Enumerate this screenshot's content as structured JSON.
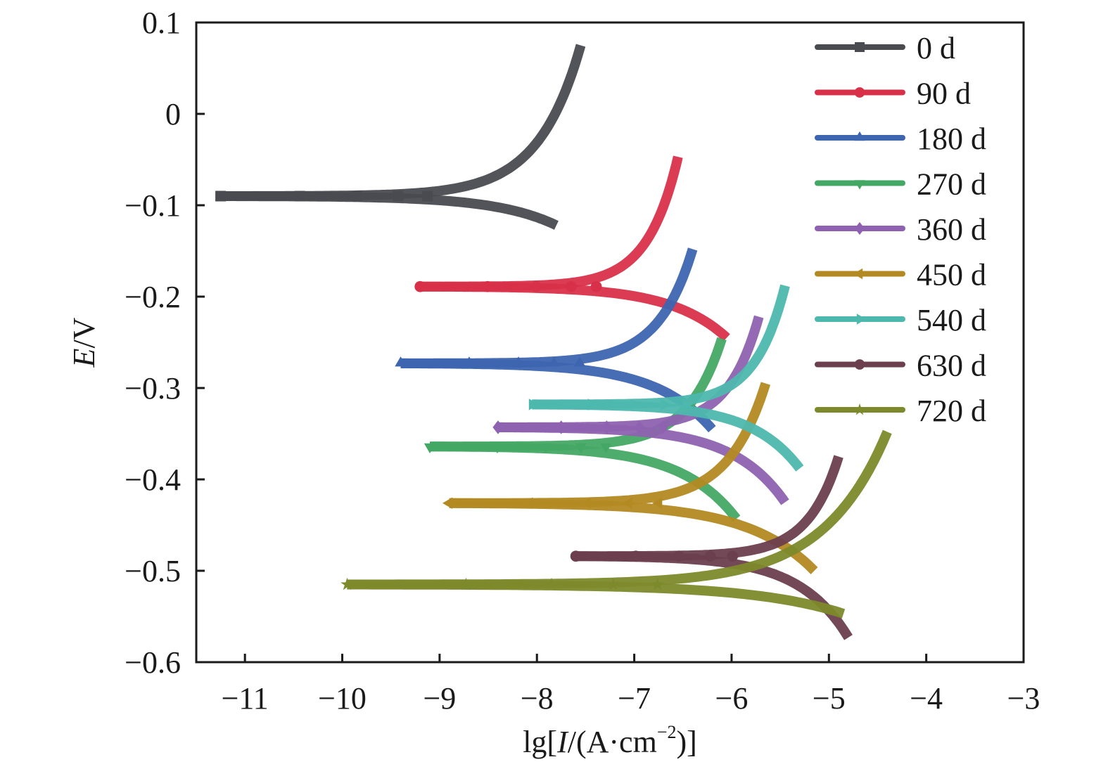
{
  "chart_data": {
    "type": "line",
    "title": "",
    "xlabel": "lg[I/(A·cm⁻²)]",
    "xlabel_parts": {
      "pre": "lg[",
      "italic": "I",
      "mid": "/(A·cm",
      "sup": "−2",
      "post": ")]"
    },
    "ylabel": "E/V",
    "ylabel_parts": {
      "italic": "E",
      "post": "/V"
    },
    "xlim": [
      -11.5,
      -3
    ],
    "ylim": [
      -0.6,
      0.1
    ],
    "xticks": [
      -11,
      -10,
      -9,
      -8,
      -7,
      -6,
      -5,
      -4,
      -3
    ],
    "xtick_labels": [
      "−11",
      "−10",
      "−9",
      "−8",
      "−7",
      "−6",
      "−5",
      "−4",
      "−3"
    ],
    "yticks": [
      0.1,
      0,
      -0.1,
      -0.2,
      -0.3,
      -0.4,
      -0.5,
      -0.6
    ],
    "ytick_labels": [
      "0.1",
      "0",
      "−0.1",
      "−0.2",
      "−0.3",
      "−0.4",
      "−0.5",
      "−0.6"
    ],
    "grid": false,
    "legend_position": "top-right",
    "series": [
      {
        "name": "0 d",
        "color": "#4a4b50",
        "marker": "square",
        "ecorr": -0.09,
        "start_lgI": -11.25,
        "anodic_end": [
          -7.55,
          0.075
        ],
        "cathodic_end": [
          -7.8,
          -0.122
        ]
      },
      {
        "name": "90 d",
        "color": "#d9304a",
        "marker": "circle",
        "ecorr": -0.189,
        "start_lgI": -9.2,
        "anodic_end": [
          -6.55,
          -0.047
        ],
        "cathodic_end": [
          -6.05,
          -0.245
        ]
      },
      {
        "name": "180 d",
        "color": "#3d65b0",
        "marker": "triangle-up",
        "ecorr": -0.273,
        "start_lgI": -9.4,
        "anodic_end": [
          -6.4,
          -0.148
        ],
        "cathodic_end": [
          -6.2,
          -0.345
        ]
      },
      {
        "name": "270 d",
        "color": "#44a865",
        "marker": "triangle-down",
        "ecorr": -0.364,
        "start_lgI": -9.1,
        "anodic_end": [
          -6.1,
          -0.246
        ],
        "cathodic_end": [
          -5.95,
          -0.443
        ]
      },
      {
        "name": "360 d",
        "color": "#8e62b0",
        "marker": "diamond",
        "ecorr": -0.343,
        "start_lgI": -8.4,
        "anodic_end": [
          -5.72,
          -0.222
        ],
        "cathodic_end": [
          -5.45,
          -0.425
        ]
      },
      {
        "name": "450 d",
        "color": "#b38a22",
        "marker": "triangle-left",
        "ecorr": -0.426,
        "start_lgI": -8.9,
        "anodic_end": [
          -5.65,
          -0.295
        ],
        "cathodic_end": [
          -5.15,
          -0.5
        ]
      },
      {
        "name": "540 d",
        "color": "#4db8ae",
        "marker": "triangle-right",
        "ecorr": -0.318,
        "start_lgI": -8.05,
        "anodic_end": [
          -5.45,
          -0.188
        ],
        "cathodic_end": [
          -5.3,
          -0.388
        ]
      },
      {
        "name": "630 d",
        "color": "#6b3f4e",
        "marker": "hexagon",
        "ecorr": -0.484,
        "start_lgI": -7.6,
        "anodic_end": [
          -4.9,
          -0.375
        ],
        "cathodic_end": [
          -4.8,
          -0.573
        ]
      },
      {
        "name": "720 d",
        "color": "#7d8a2b",
        "marker": "star",
        "ecorr": -0.515,
        "start_lgI": -9.95,
        "anodic_end": [
          -4.4,
          -0.348
        ],
        "cathodic_end": [
          -4.85,
          -0.547
        ]
      }
    ]
  }
}
